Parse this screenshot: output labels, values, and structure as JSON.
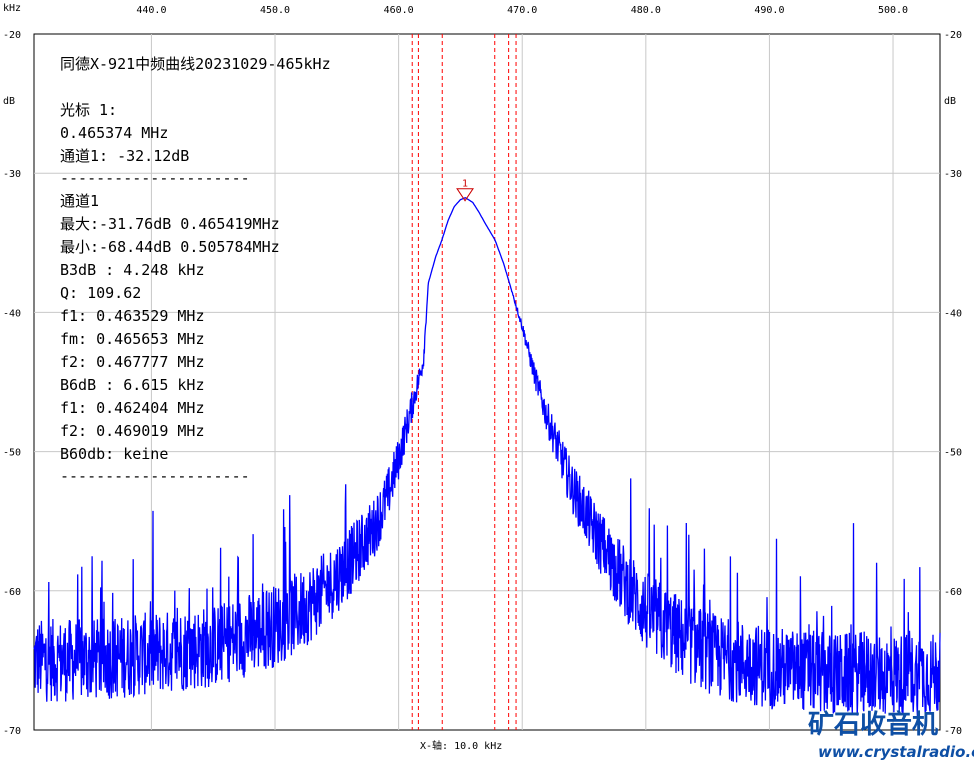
{
  "chart_data": {
    "type": "line",
    "title": "同德X-921中频曲线20231029-465kHz",
    "x_unit": "kHz",
    "y_unit": "dB",
    "xlim": [
      430.5,
      503.8
    ],
    "ylim": [
      -70,
      -20
    ],
    "x_ticks": [
      440.0,
      450.0,
      460.0,
      470.0,
      480.0,
      490.0,
      500.0
    ],
    "x_tick_labels": [
      "440.0",
      "450.0",
      "460.0",
      "470.0",
      "480.0",
      "490.0",
      "500.0"
    ],
    "y_ticks": [
      -20,
      -30,
      -40,
      -50,
      -60,
      -70
    ],
    "y_tick_labels": [
      "-20",
      "-30",
      "-40",
      "-50",
      "-60",
      "-70"
    ],
    "x_axis_label": "X-轴: 10.0 kHz",
    "grid": true,
    "series": [
      {
        "color": "#0000ff",
        "x": [
          430.5,
          435,
          440,
          445,
          450,
          452,
          454,
          456,
          458,
          459,
          460,
          461,
          462,
          462.4,
          463,
          463.5,
          464,
          464.5,
          465,
          465.4,
          466,
          466.5,
          467,
          467.8,
          468.5,
          469,
          470,
          471,
          472,
          474,
          476,
          478,
          480,
          483,
          486,
          490,
          495,
          500,
          503.8
        ],
        "y": [
          -65,
          -65,
          -64.5,
          -64,
          -62.5,
          -61.5,
          -60,
          -58,
          -55.5,
          -53.5,
          -50.5,
          -47,
          -43.5,
          -37.9,
          -36,
          -34.8,
          -33.4,
          -32.4,
          -31.9,
          -31.76,
          -32.1,
          -32.8,
          -33.6,
          -34.8,
          -36.5,
          -38,
          -41,
          -44.5,
          -47.5,
          -52.5,
          -56,
          -59,
          -61.5,
          -63.5,
          -64.8,
          -65.5,
          -66,
          -66,
          -66
        ]
      }
    ],
    "markers": [
      {
        "label": "1",
        "x": 465.374,
        "y": -32.12
      }
    ],
    "vertical_lines": {
      "color": "#ff0000",
      "x": [
        461.1,
        461.6,
        463.529,
        467.777,
        468.9,
        469.5
      ]
    },
    "noise_amplitude_db": 3
  },
  "axis": {
    "unit_top_left": "kHz",
    "unit_left": "dB",
    "unit_right": "dB"
  },
  "info": {
    "title": "同德X-921中频曲线20231029-465kHz",
    "cursor_label": "光标 1:",
    "cursor_freq": "0.465374 MHz",
    "cursor_channel": "通道1:  -32.12dB",
    "separator1": "---------------------",
    "channel": "通道1",
    "max": "最大:-31.76dB 0.465419MHz",
    "min": "最小:-68.44dB 0.505784MHz",
    "b3db": "B3dB : 4.248 kHz",
    "q": "Q: 109.62",
    "f1_3db": "f1: 0.463529 MHz",
    "fm": "fm: 0.465653 MHz",
    "f2_3db": "f2: 0.467777 MHz",
    "b6db": "B6dB : 6.615 kHz",
    "f1_6db": "f1: 0.462404 MHz",
    "f2_6db": "f2: 0.469019 MHz",
    "b60db": "B60db: keine",
    "separator2": "---------------------"
  },
  "watermark": {
    "main": "矿石收音机",
    "url": "www.crystalradio.cn"
  }
}
